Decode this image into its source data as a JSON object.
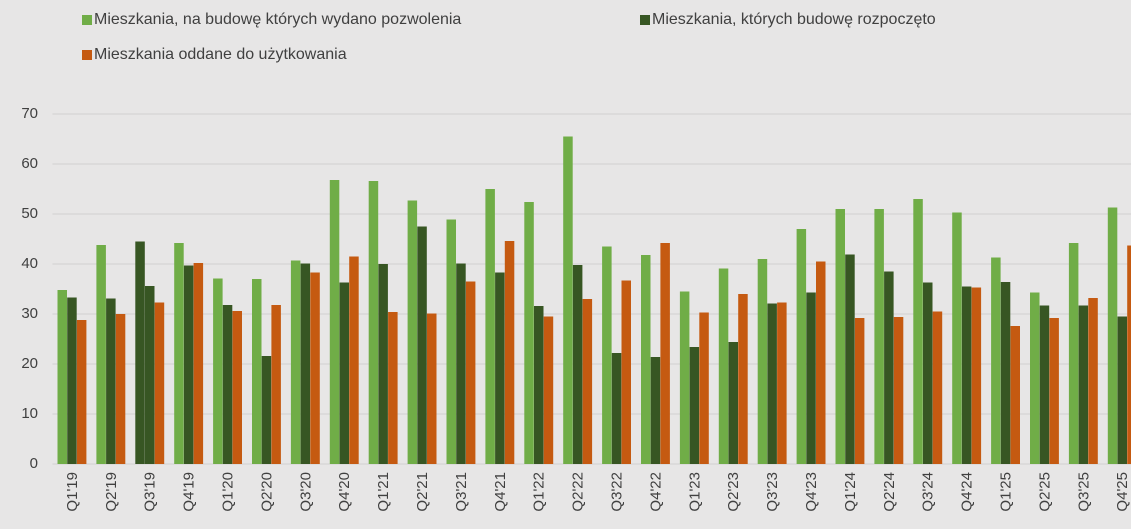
{
  "chart_data": {
    "type": "bar",
    "categories": [
      "Q1'19",
      "Q2'19",
      "Q3'19",
      "Q4'19",
      "Q1'20",
      "Q2'20",
      "Q3'20",
      "Q4'20",
      "Q1'21",
      "Q2'21",
      "Q3'21",
      "Q4'21",
      "Q1'22",
      "Q2'22",
      "Q3'22",
      "Q4'22",
      "Q1'23",
      "Q2'23",
      "Q3'23",
      "Q4'23",
      "Q1'24",
      "Q2'24",
      "Q3'24",
      "Q4'24",
      "Q1'25",
      "Q2'25",
      "Q3'25",
      "Q4'25"
    ],
    "series": [
      {
        "name": "Mieszkania, na budowę których wydano pozwolenia",
        "color": "#70ad47",
        "point_colors": {
          "2": "#375623"
        },
        "values": [
          34.8,
          43.8,
          44.5,
          44.2,
          37.1,
          37.0,
          40.7,
          56.8,
          56.6,
          52.7,
          48.9,
          55.0,
          52.4,
          65.5,
          43.5,
          41.8,
          34.5,
          39.1,
          41.0,
          47.0,
          51.0,
          51.0,
          53.0,
          50.3,
          41.3,
          34.3,
          44.2,
          51.3
        ]
      },
      {
        "name": "Mieszkania, których budowę rozpoczęto",
        "color": "#375623",
        "values": [
          33.3,
          33.1,
          35.6,
          39.7,
          31.8,
          21.6,
          40.1,
          36.3,
          40.0,
          47.5,
          40.1,
          38.3,
          31.6,
          39.8,
          22.2,
          21.4,
          23.4,
          24.4,
          32.1,
          34.3,
          41.9,
          38.5,
          36.3,
          35.5,
          36.4,
          31.7,
          31.7,
          29.5
        ]
      },
      {
        "name": "Mieszkania oddane do użytkowania",
        "color": "#c55a11",
        "values": [
          28.8,
          30.0,
          32.3,
          40.2,
          30.6,
          31.8,
          38.3,
          41.5,
          30.4,
          30.1,
          36.5,
          44.6,
          29.5,
          33.0,
          36.7,
          44.2,
          30.3,
          34.0,
          32.3,
          40.5,
          29.2,
          29.4,
          30.5,
          35.3,
          27.6,
          29.2,
          33.2,
          43.7
        ]
      }
    ],
    "ylim": [
      0,
      70
    ],
    "yticks": [
      0,
      10,
      20,
      30,
      40,
      50,
      60,
      70
    ],
    "grid": true,
    "legend": "top"
  }
}
